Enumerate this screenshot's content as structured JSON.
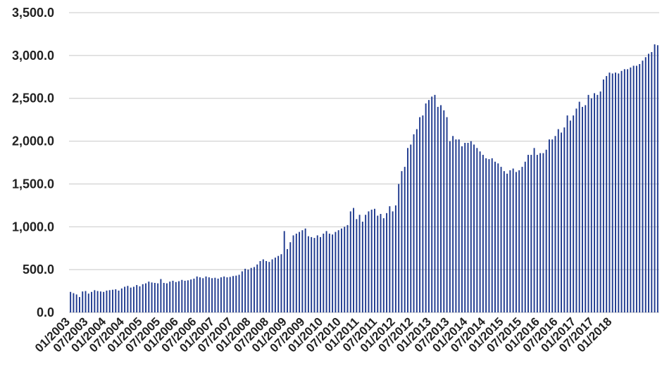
{
  "chart_data": {
    "type": "bar",
    "title": "",
    "xlabel": "",
    "ylabel": "",
    "ylim": [
      0,
      3500
    ],
    "yticks": [
      "0.0",
      "500.0",
      "1,000.0",
      "1,500.0",
      "2,000.0",
      "2,500.0",
      "3,000.0",
      "3,500.0"
    ],
    "x_tick_labels": [
      "01/2003",
      "07/2003",
      "01/2004",
      "07/2004",
      "01/2005",
      "07/2005",
      "01/2006",
      "07/2006",
      "01/2007",
      "07/2007",
      "01/2008",
      "07/2008",
      "01/2009",
      "07/2009",
      "01/2010",
      "07/2010",
      "01/2011",
      "07/2011",
      "01/2012",
      "07/2012",
      "01/2013",
      "07/2013",
      "01/2014",
      "07/2014",
      "01/2015",
      "07/2015",
      "01/2016",
      "07/2016",
      "01/2017",
      "07/2017",
      "01/2018"
    ],
    "grid": true,
    "bar_color": "#1f3a8f",
    "start_month": "01/2003",
    "values": [
      240,
      225,
      210,
      180,
      245,
      250,
      220,
      240,
      260,
      250,
      245,
      240,
      255,
      260,
      265,
      270,
      255,
      280,
      300,
      310,
      290,
      300,
      320,
      305,
      330,
      340,
      360,
      350,
      345,
      340,
      390,
      345,
      340,
      360,
      370,
      355,
      365,
      380,
      370,
      375,
      385,
      395,
      420,
      410,
      400,
      420,
      410,
      400,
      405,
      395,
      410,
      420,
      410,
      415,
      425,
      430,
      440,
      480,
      510,
      500,
      520,
      530,
      560,
      600,
      620,
      600,
      590,
      620,
      640,
      660,
      680,
      950,
      740,
      820,
      900,
      920,
      940,
      960,
      980,
      890,
      880,
      870,
      900,
      880,
      920,
      950,
      920,
      910,
      940,
      960,
      980,
      1000,
      1020,
      1180,
      1220,
      1090,
      1140,
      1060,
      1140,
      1180,
      1200,
      1210,
      1130,
      1150,
      1100,
      1160,
      1240,
      1180,
      1250,
      1500,
      1650,
      1700,
      1920,
      1960,
      2080,
      2140,
      2280,
      2300,
      2440,
      2480,
      2520,
      2540,
      2400,
      2420,
      2360,
      2280,
      2000,
      2060,
      2020,
      2020,
      1940,
      1980,
      1980,
      2000,
      1960,
      1920,
      1880,
      1840,
      1800,
      1790,
      1800,
      1760,
      1740,
      1700,
      1650,
      1620,
      1660,
      1680,
      1640,
      1660,
      1700,
      1760,
      1840,
      1840,
      1920,
      1840,
      1860,
      1860,
      1900,
      2020,
      2020,
      2060,
      2140,
      2100,
      2160,
      2300,
      2240,
      2300,
      2380,
      2460,
      2400,
      2420,
      2540,
      2500,
      2560,
      2540,
      2580,
      2720,
      2760,
      2800,
      2790,
      2800,
      2790,
      2820,
      2840,
      2840,
      2860,
      2880,
      2880,
      2900,
      2940,
      2980,
      3020,
      3040,
      3130,
      3120
    ]
  }
}
